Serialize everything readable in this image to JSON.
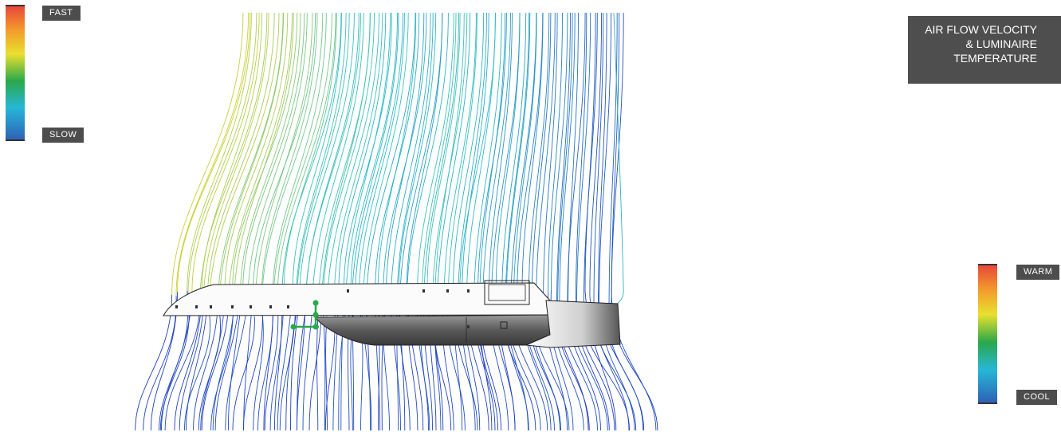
{
  "velocity_scale": {
    "high_label": "FAST",
    "low_label": "SLOW"
  },
  "temperature_scale": {
    "high_label": "WARM",
    "low_label": "COOL"
  },
  "title": {
    "line1": "AIR FLOW VELOCITY",
    "line2": "& LUMINAIRE",
    "line3": "TEMPERATURE"
  },
  "colors": {
    "slow": "#1f2ebf",
    "mid": "#2fc0c8",
    "fast": "#d9d22a",
    "housing_dark": "#6a6a6a",
    "housing_light": "#f2f2f2",
    "label_bg": "#4d4d4d"
  }
}
